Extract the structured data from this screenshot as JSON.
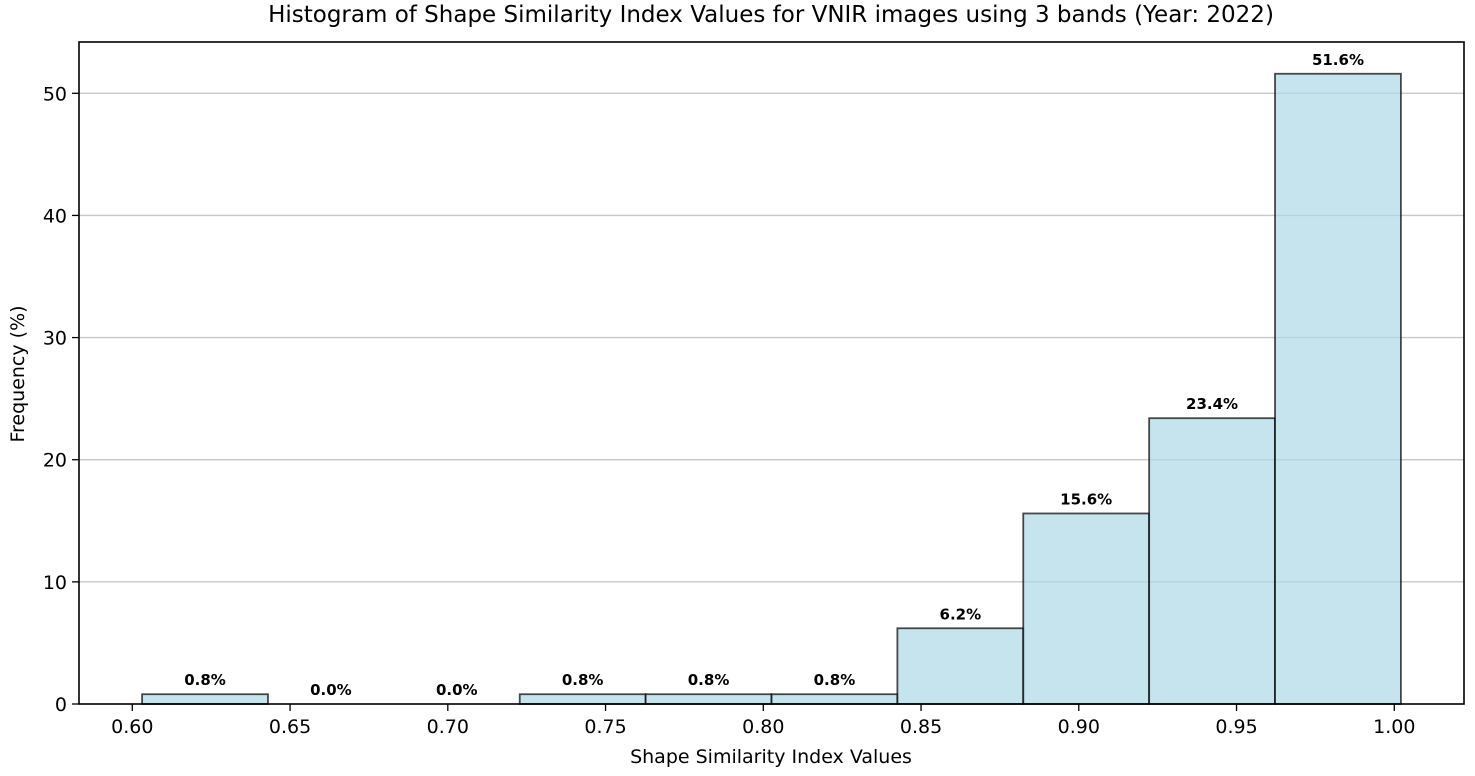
{
  "chart_data": {
    "type": "bar",
    "title": "Histogram of Shape Similarity Index Values for VNIR images using 3 bands (Year: 2022)",
    "xlabel": "Shape Similarity Index Values",
    "ylabel": "Frequency (%)",
    "bin_edges": [
      0.6031,
      0.643,
      0.6829,
      0.7228,
      0.7627,
      0.8026,
      0.8425,
      0.8824,
      0.9223,
      0.9622,
      1.0021
    ],
    "values": [
      0.8,
      0.0,
      0.0,
      0.8,
      0.8,
      0.8,
      6.2,
      15.6,
      23.4,
      51.6
    ],
    "labels": [
      "0.8%",
      "0.0%",
      "0.0%",
      "0.8%",
      "0.8%",
      "0.8%",
      "6.2%",
      "15.6%",
      "23.4%",
      "51.6%"
    ],
    "xticks": [
      0.6,
      0.65,
      0.7,
      0.75,
      0.8,
      0.85,
      0.9,
      0.95,
      1.0
    ],
    "xtick_labels": [
      "0.60",
      "0.65",
      "0.70",
      "0.75",
      "0.80",
      "0.85",
      "0.90",
      "0.95",
      "1.00"
    ],
    "yticks": [
      0,
      10,
      20,
      30,
      40,
      50
    ],
    "ytick_labels": [
      "0",
      "10",
      "20",
      "30",
      "40",
      "50"
    ],
    "xlim": [
      0.5831,
      1.0221
    ],
    "ylim": [
      0,
      54.2
    ],
    "grid": "y",
    "colors": {
      "bar_fill": "#add8e6",
      "bar_edge": "#000000",
      "grid": "#c8c8c8"
    }
  }
}
